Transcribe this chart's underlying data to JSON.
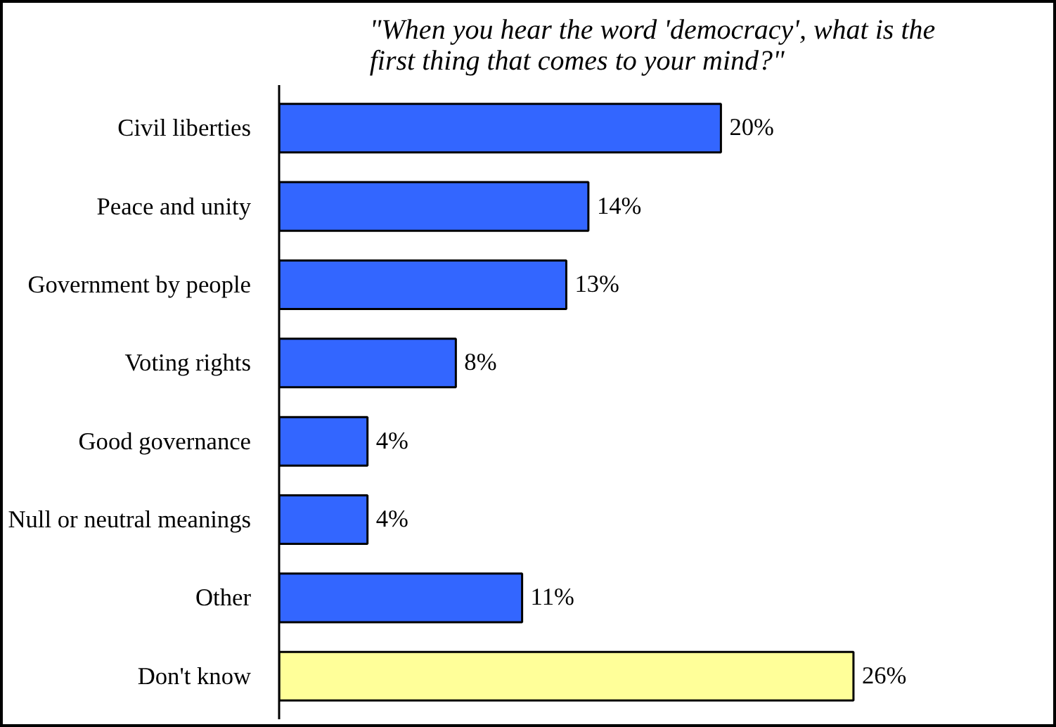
{
  "chart_data": {
    "type": "bar",
    "orientation": "horizontal",
    "title": "\"When you hear the word 'democracy', what is the\nfirst thing that comes to your mind?\"",
    "categories": [
      "Civil liberties",
      "Peace and unity",
      "Government by people",
      "Voting rights",
      "Good governance",
      "Null or neutral meanings",
      "Other",
      "Don't know"
    ],
    "values": [
      20,
      14,
      13,
      8,
      4,
      4,
      11,
      26
    ],
    "colors": [
      "#3366ff",
      "#3366ff",
      "#3366ff",
      "#3366ff",
      "#3366ff",
      "#3366ff",
      "#3366ff",
      "#ffff99"
    ],
    "value_labels": [
      "20%",
      "14%",
      "13%",
      "8%",
      "4%",
      "4%",
      "11%",
      "26%"
    ],
    "grid": false
  }
}
